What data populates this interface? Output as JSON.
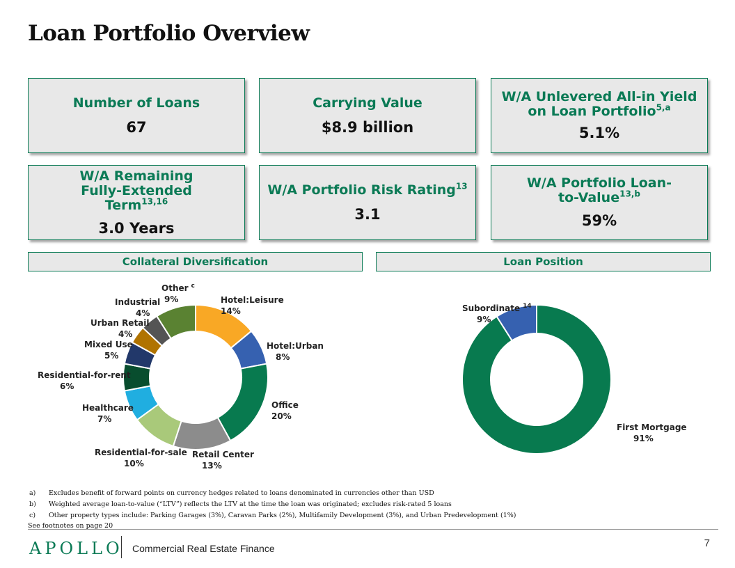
{
  "title": "Loan Portfolio Overview",
  "kpis": [
    {
      "label": "Number of Loans",
      "sup": "",
      "label2": "",
      "sup2": "",
      "value": "67"
    },
    {
      "label": "Carrying Value",
      "sup": "",
      "label2": "",
      "sup2": "",
      "value": "$8.9 billion"
    },
    {
      "label": "W/A Unlevered All-in Yield on Loan Portfolio",
      "sup": "5,a",
      "value": "5.1%"
    },
    {
      "label": "W/A Remaining Fully-Extended Term",
      "sup": "13,16",
      "value": "3.0 Years"
    },
    {
      "label": "W/A Portfolio Risk Rating",
      "sup": "13",
      "value": "3.1"
    },
    {
      "label": "W/A Portfolio Loan-to-Value",
      "sup": "13,b",
      "value": "59%"
    }
  ],
  "sections": {
    "collateral": "Collateral Diversification",
    "position": "Loan Position"
  },
  "chart_data": [
    {
      "type": "pie",
      "title": "Collateral Diversification",
      "categories": [
        "Hotel:Leisure",
        "Hotel:Urban",
        "Office",
        "Retail Center",
        "Residential-for-sale",
        "Healthcare",
        "Residential-for-rent",
        "Mixed Use",
        "Urban Retail",
        "Industrial",
        "Other"
      ],
      "values": [
        14,
        8,
        20,
        13,
        10,
        7,
        6,
        5,
        4,
        4,
        9
      ],
      "value_labels": [
        "14%",
        "8%",
        "20%",
        "13%",
        "10%",
        "7%",
        "6%",
        "5%",
        "4%",
        "4%",
        "9%"
      ],
      "label_sups": [
        "",
        "",
        "",
        "",
        "",
        "",
        "",
        "",
        "",
        "",
        "c"
      ],
      "colors": [
        "#f9a825",
        "#3661b0",
        "#087a4f",
        "#8c8c8c",
        "#a9c97a",
        "#20aee0",
        "#084d2e",
        "#22386a",
        "#b07300",
        "#545454",
        "#5a8232"
      ]
    },
    {
      "type": "pie",
      "title": "Loan Position",
      "categories": [
        "First Mortgage",
        "Subordinate"
      ],
      "values": [
        91,
        9
      ],
      "value_labels": [
        "91%",
        "9%"
      ],
      "label_sups": [
        "",
        "14"
      ],
      "colors": [
        "#087a4f",
        "#3661b0"
      ]
    }
  ],
  "footnotes": [
    {
      "marker": "a)",
      "text": "Excludes benefit of forward points on currency hedges related to loans denominated in currencies other than USD"
    },
    {
      "marker": "b)",
      "text": "Weighted average loan-to-value (“LTV”) reflects the LTV at the time the loan was originated; excludes risk-rated 5 loans"
    },
    {
      "marker": "c)",
      "text": "Other property types include: Parking Garages (3%), Caravan Parks (2%), Multifamily Development (3%), and Urban Predevelopment (1%)"
    }
  ],
  "see_footnotes": "See footnotes on page 20",
  "footer": {
    "logo": "APOLLO",
    "text": "Commercial Real Estate Finance",
    "page_number": "7"
  }
}
